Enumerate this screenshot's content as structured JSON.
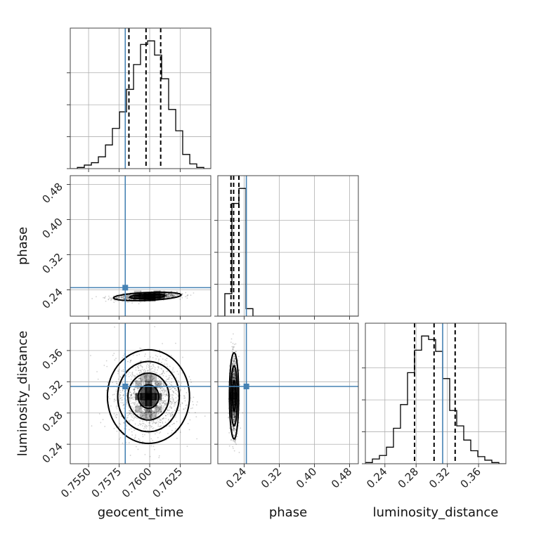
{
  "chart_data": {
    "type": "corner",
    "parameters": [
      "geocent_time",
      "phase",
      "luminosity_distance"
    ],
    "truths": {
      "geocent_time": 0.758,
      "phase": 0.245,
      "luminosity_distance": 0.314
    },
    "colors": {
      "truth": "#4682b4",
      "hist": "#000000",
      "grid": "#b0b0b0"
    },
    "geocent_time": {
      "range": [
        0.7535,
        0.765
      ],
      "ticks": [
        0.755,
        0.7575,
        0.76,
        0.7625
      ],
      "tick_labels": [
        "0.7550",
        "0.7575",
        "0.7600",
        "0.7625"
      ],
      "quantiles": [
        0.7583,
        0.7597,
        0.7609
      ],
      "hist_edges": [
        0.7535,
        0.75408,
        0.75465,
        0.75523,
        0.7558,
        0.75638,
        0.75695,
        0.75753,
        0.7581,
        0.75868,
        0.75925,
        0.75983,
        0.7604,
        0.76098,
        0.76155,
        0.76213,
        0.7627,
        0.76328,
        0.76385,
        0.76443,
        0.765
      ],
      "hist_counts": [
        0,
        1,
        3,
        5,
        10,
        20,
        34,
        48,
        67,
        88,
        105,
        108,
        96,
        76,
        50,
        32,
        12,
        4,
        1,
        0
      ]
    },
    "phase": {
      "range": [
        0.18,
        0.5
      ],
      "ticks": [
        0.24,
        0.32,
        0.4,
        0.48
      ],
      "tick_labels": [
        "0.24",
        "0.32",
        "0.40",
        "0.48"
      ],
      "quantiles": [
        0.21,
        0.216,
        0.228
      ],
      "hist_edges": [
        0.18,
        0.196,
        0.212,
        0.228,
        0.244,
        0.26,
        0.276,
        0.292,
        0.308,
        0.324,
        0.34,
        0.356,
        0.372,
        0.388,
        0.404,
        0.42,
        0.436,
        0.452,
        0.468,
        0.484,
        0.5
      ],
      "hist_counts": [
        0,
        6,
        30,
        34,
        2,
        0,
        0,
        0,
        0,
        0,
        0,
        0,
        0,
        0,
        0,
        0,
        0,
        0,
        0,
        0
      ]
    },
    "luminosity_distance": {
      "range": [
        0.215,
        0.395
      ],
      "ticks": [
        0.24,
        0.28,
        0.32,
        0.36
      ],
      "tick_labels": [
        "0.24",
        "0.28",
        "0.32",
        "0.36"
      ],
      "quantiles": [
        0.278,
        0.303,
        0.33
      ],
      "hist_edges": [
        0.215,
        0.224,
        0.233,
        0.242,
        0.251,
        0.26,
        0.269,
        0.278,
        0.287,
        0.296,
        0.305,
        0.314,
        0.323,
        0.332,
        0.341,
        0.35,
        0.359,
        0.368,
        0.377,
        0.386,
        0.395
      ],
      "hist_counts": [
        1,
        4,
        7,
        14,
        30,
        50,
        77,
        96,
        108,
        105,
        95,
        72,
        45,
        32,
        20,
        11,
        6,
        3,
        1,
        0
      ]
    },
    "pairs": [
      {
        "x": "geocent_time",
        "y": "phase",
        "center": [
          0.7598,
          0.225
        ],
        "spread": [
          0.0012,
          0.0042
        ],
        "correlation": 0.35,
        "contour_radii": [
          1.2,
          2.3
        ],
        "density_bins": [
          [
            0.759,
            0.226,
            2
          ],
          [
            0.7594,
            0.226,
            3
          ],
          [
            0.7598,
            0.226,
            4
          ],
          [
            0.7602,
            0.226,
            4
          ],
          [
            0.7606,
            0.226,
            3
          ],
          [
            0.761,
            0.226,
            2
          ],
          [
            0.7594,
            0.222,
            2
          ],
          [
            0.7598,
            0.222,
            3
          ],
          [
            0.7602,
            0.222,
            3
          ],
          [
            0.759,
            0.23,
            1
          ],
          [
            0.7606,
            0.23,
            2
          ]
        ]
      },
      {
        "x": "geocent_time",
        "y": "luminosity_distance",
        "center": [
          0.7599,
          0.301
        ],
        "spread": [
          0.0014,
          0.025
        ],
        "correlation": 0.0,
        "contour_radii": [
          0.6,
          1.2,
          1.8,
          2.4
        ],
        "density_bins": [
          [
            0.7591,
            0.301,
            3
          ],
          [
            0.7595,
            0.301,
            4
          ],
          [
            0.7599,
            0.301,
            5
          ],
          [
            0.7603,
            0.301,
            4
          ],
          [
            0.7607,
            0.301,
            3
          ],
          [
            0.7595,
            0.309,
            3
          ],
          [
            0.7599,
            0.309,
            4
          ],
          [
            0.7603,
            0.309,
            3
          ],
          [
            0.7595,
            0.293,
            3
          ],
          [
            0.7599,
            0.293,
            4
          ],
          [
            0.7603,
            0.293,
            3
          ],
          [
            0.7599,
            0.317,
            2
          ],
          [
            0.7599,
            0.285,
            2
          ],
          [
            0.7591,
            0.317,
            1
          ],
          [
            0.7607,
            0.317,
            1
          ],
          [
            0.7591,
            0.285,
            1
          ],
          [
            0.7607,
            0.285,
            1
          ],
          [
            0.7599,
            0.325,
            1
          ],
          [
            0.7595,
            0.325,
            1
          ],
          [
            0.7603,
            0.325,
            1
          ],
          [
            0.7599,
            0.277,
            1
          ],
          [
            0.7595,
            0.277,
            1
          ],
          [
            0.7603,
            0.277,
            1
          ]
        ]
      },
      {
        "x": "phase",
        "y": "luminosity_distance",
        "center": [
          0.217,
          0.302
        ],
        "spread": [
          0.0046,
          0.024
        ],
        "correlation": 0.0,
        "contour_radii": [
          0.8,
          1.6,
          2.3
        ],
        "density_bins": [
          [
            0.217,
            0.302,
            4
          ],
          [
            0.217,
            0.294,
            3
          ],
          [
            0.217,
            0.31,
            3
          ],
          [
            0.217,
            0.286,
            2
          ],
          [
            0.217,
            0.318,
            2
          ],
          [
            0.217,
            0.278,
            1
          ],
          [
            0.217,
            0.326,
            1
          ]
        ]
      }
    ]
  }
}
